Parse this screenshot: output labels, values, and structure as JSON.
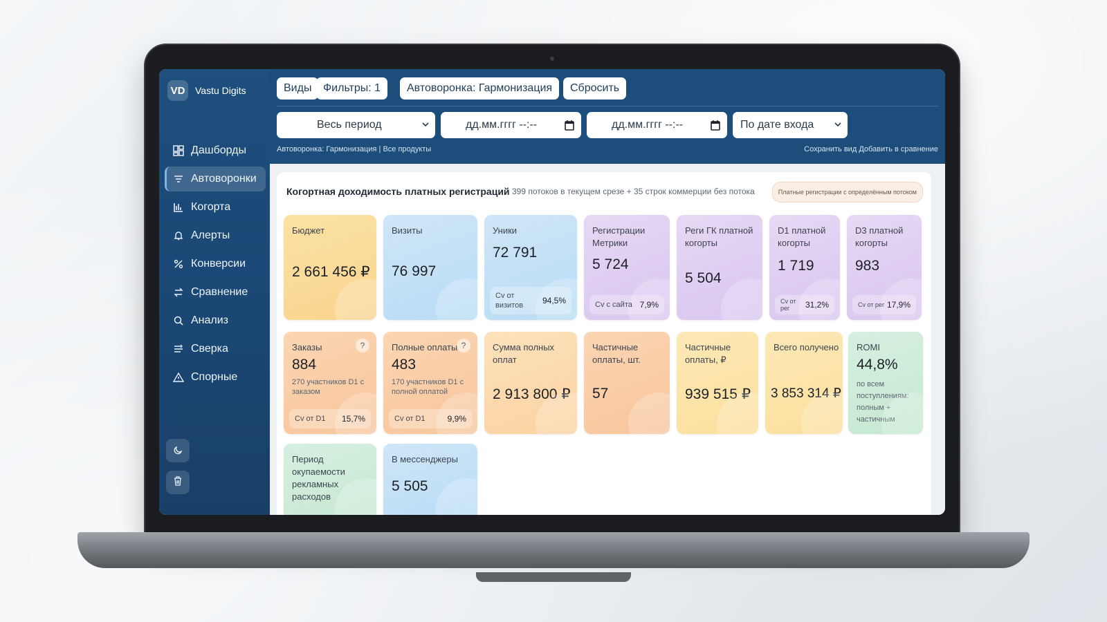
{
  "brand": {
    "logo": "VD",
    "name": "Vastu Digits"
  },
  "sidebar": {
    "items": [
      {
        "label": "Дашборды",
        "icon": "dashboard-icon"
      },
      {
        "label": "Автоворонки",
        "icon": "funnel-icon",
        "active": true
      },
      {
        "label": "Когорта",
        "icon": "cohort-chart-icon"
      },
      {
        "label": "Алерты",
        "icon": "bell-icon"
      },
      {
        "label": "Конверсии",
        "icon": "percent-icon"
      },
      {
        "label": "Сравнение",
        "icon": "swap-arrows-icon"
      },
      {
        "label": "Анализ",
        "icon": "magnifier-icon"
      },
      {
        "label": "Сверка",
        "icon": "reconcile-icon"
      },
      {
        "label": "Спорные",
        "icon": "warning-triangle-icon"
      }
    ],
    "buttons": [
      {
        "icon": "moon-icon"
      },
      {
        "icon": "trash-icon"
      }
    ]
  },
  "toolbar": {
    "views": "Виды",
    "filters": "Фильтры: 1",
    "funnel": "Автоворонка: Гармонизация",
    "reset": "Сбросить"
  },
  "controls": {
    "period": "Весь период",
    "date_from": "дд.мм.гггг --:--",
    "date_to": "дд.мм.гггг --:--",
    "date_mode": "По дате входа"
  },
  "subline": {
    "left_a": "Автоворонка: Гармонизация",
    "left_sep": "|",
    "left_b": "Все продукты",
    "save_view": "Сохранить вид",
    "add_compare": "Добавить в сравнение"
  },
  "panel": {
    "title": "Когортная доходимость платных регистраций",
    "subtitle": "399 потоков в текущем срезе + 35 строк коммерции без потока",
    "chip": "Платные регистрации с определённым потоком"
  },
  "cards_row1": [
    {
      "label": "Бюджет",
      "value": "2 661 456 ₽"
    },
    {
      "label": "Визиты",
      "value": "76 997"
    },
    {
      "label": "Уники",
      "value": "72 791",
      "foot_label": "Cv от визитов",
      "foot_value": "94,5%"
    },
    {
      "label": "Регистрации Метрики",
      "value": "5 724",
      "foot_label": "Cv с сайта",
      "foot_value": "7,9%"
    },
    {
      "label": "Реги ГК платной когорты",
      "value": "5 504"
    },
    {
      "label": "D1 платной когорты",
      "value": "1 719",
      "foot_label": "Cv от рег",
      "foot_value": "31,2%"
    },
    {
      "label": "D3 платной когорты",
      "value": "983",
      "foot_label": "Cv от рег",
      "foot_value": "17,9%"
    }
  ],
  "cards_row2": [
    {
      "label": "Заказы",
      "value": "884",
      "note": "270 участников D1 с заказом",
      "foot_label": "Cv от D1",
      "foot_value": "15,7%",
      "help": "?"
    },
    {
      "label": "Полные оплаты",
      "value": "483",
      "note": "170 участников D1 с полной оплатой",
      "foot_label": "Cv от D1",
      "foot_value": "9,9%",
      "help": "?"
    },
    {
      "label": "Сумма полных оплат",
      "value": "2 913 800 ₽"
    },
    {
      "label": "Частичные оплаты, шт.",
      "value": "57"
    },
    {
      "label": "Частичные оплаты, ₽",
      "value": "939 515 ₽"
    },
    {
      "label": "Всего получено",
      "value": "3 853 314 ₽"
    },
    {
      "label": "ROMI",
      "value": "44,8%",
      "note": "по всем поступлениям: полным + частичным"
    }
  ],
  "cards_row3": [
    {
      "label": "Период окупаемости рекламных расходов"
    },
    {
      "label": "В мессенджеры",
      "value": "5 505"
    }
  ],
  "colors": {
    "sidebar": "#1e4f7d",
    "header": "#1d4d7b",
    "accent": "#7fb4e6"
  }
}
